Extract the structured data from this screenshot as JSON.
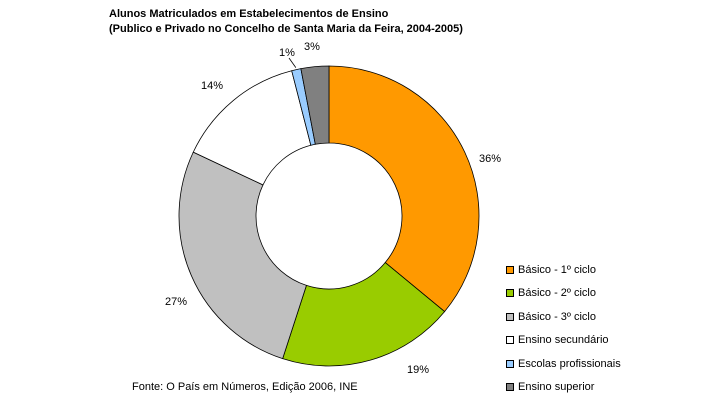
{
  "title_line1": "Alunos Matriculados em Estabelecimentos de Ensino",
  "title_line2": "(Publico e Privado no Concelho de Santa Maria da Feira, 2004-2005)",
  "source": "Fonte: O País em Números, Edição 2006, INE",
  "chart_data": {
    "type": "pie",
    "donut": true,
    "legend_position": "bottom-right",
    "title": "Alunos Matriculados em Estabelecimentos de Ensino (Publico e Privado no Concelho de Santa Maria da Feira, 2004-2005)",
    "categories": [
      "Básico - 1º ciclo",
      "Básico - 2º ciclo",
      "Básico - 3º ciclo",
      "Ensino secundário",
      "Escolas profissionais",
      "Ensino superior"
    ],
    "values": [
      36,
      19,
      27,
      14,
      1,
      3
    ],
    "labels": [
      "36%",
      "19%",
      "27%",
      "14%",
      "1%",
      "3%"
    ],
    "colors": [
      "#ff9900",
      "#99cc00",
      "#c0c0c0",
      "#ffffff",
      "#99ccff",
      "#808080"
    ]
  }
}
